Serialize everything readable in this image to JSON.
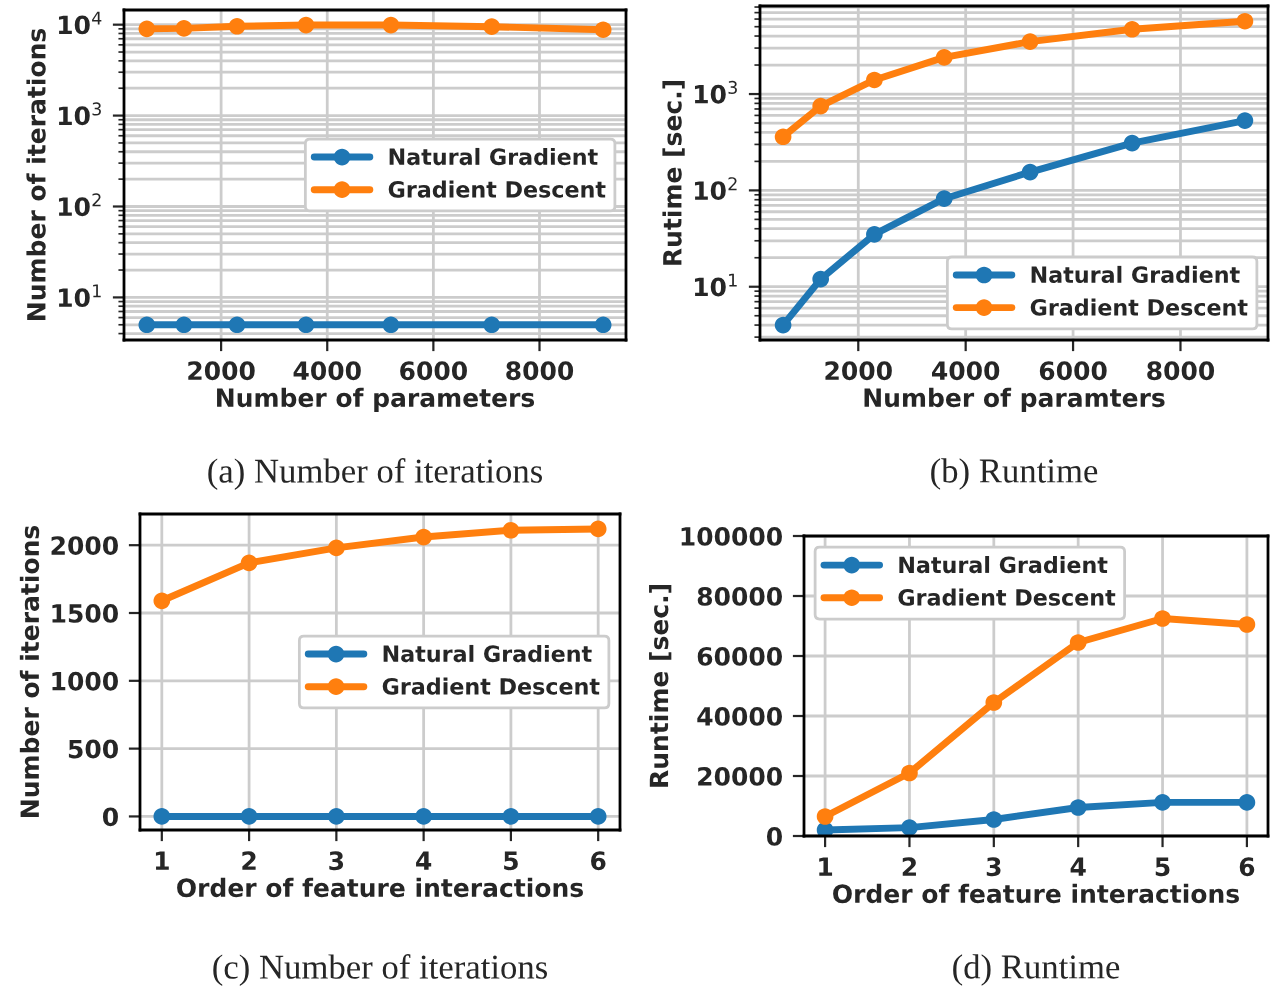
{
  "chart_data": [
    {
      "type": "line",
      "xlabel": "Number of parameters",
      "ylabel": "Number of iterations",
      "annotations": [
        "(a) Number of iterations"
      ],
      "log": "y",
      "grid": true,
      "legend": "right",
      "marker": "circle",
      "line_style": "solid",
      "x": [
        600,
        1300,
        2300,
        3600,
        5200,
        7100,
        9200
      ],
      "series": [
        {
          "name": "Natural Gradient",
          "color": "#1f77b4",
          "values": [
            5,
            5,
            5,
            5,
            5,
            5,
            5
          ]
        },
        {
          "name": "Gradient Descent",
          "color": "#ff7f0e",
          "values": [
            9000,
            9100,
            9600,
            9900,
            9900,
            9500,
            8800
          ]
        }
      ],
      "xlim": [
        170,
        9630
      ],
      "xticks": [
        2000,
        4000,
        6000,
        8000
      ],
      "ylim": [
        3.4,
        14500
      ],
      "yticks": [
        {
          "value": 4,
          "label": null
        },
        {
          "value": 5,
          "label": null
        },
        {
          "value": 6,
          "label": null
        },
        {
          "value": 7,
          "label": null
        },
        {
          "value": 8,
          "label": null
        },
        {
          "value": 9,
          "label": null
        },
        {
          "value": 10,
          "label": "10$^{1}$"
        },
        {
          "value": 20,
          "label": null
        },
        {
          "value": 30,
          "label": null
        },
        {
          "value": 40,
          "label": null
        },
        {
          "value": 50,
          "label": null
        },
        {
          "value": 60,
          "label": null
        },
        {
          "value": 70,
          "label": null
        },
        {
          "value": 80,
          "label": null
        },
        {
          "value": 90,
          "label": null
        },
        {
          "value": 100,
          "label": "10$^{2}$"
        },
        {
          "value": 200,
          "label": null
        },
        {
          "value": 300,
          "label": null
        },
        {
          "value": 400,
          "label": null
        },
        {
          "value": 500,
          "label": null
        },
        {
          "value": 600,
          "label": null
        },
        {
          "value": 700,
          "label": null
        },
        {
          "value": 800,
          "label": null
        },
        {
          "value": 900,
          "label": null
        },
        {
          "value": 1000,
          "label": "10$^{3}$"
        },
        {
          "value": 2000,
          "label": null
        },
        {
          "value": 3000,
          "label": null
        },
        {
          "value": 4000,
          "label": null
        },
        {
          "value": 5000,
          "label": null
        },
        {
          "value": 6000,
          "label": null
        },
        {
          "value": 7000,
          "label": null
        },
        {
          "value": 8000,
          "label": null
        },
        {
          "value": 9000,
          "label": null
        },
        {
          "value": 10000,
          "label": "10$^{4}$"
        }
      ]
    },
    {
      "type": "line",
      "xlabel": "Number of paramters",
      "ylabel": "Rutime [sec.]",
      "annotations": [
        "(b) Runtime"
      ],
      "log": "y",
      "grid": true,
      "legend": "bottom right",
      "marker": "circle",
      "line_style": "solid",
      "x": [
        600,
        1300,
        2300,
        3600,
        5200,
        7100,
        9200
      ],
      "series": [
        {
          "name": "Natural Gradient",
          "color": "#1f77b4",
          "values": [
            4,
            12,
            35,
            82,
            155,
            310,
            530
          ]
        },
        {
          "name": "Gradient Descent",
          "color": "#ff7f0e",
          "values": [
            360,
            750,
            1400,
            2400,
            3500,
            4700,
            5700
          ]
        }
      ],
      "xlim": [
        170,
        9630
      ],
      "xticks": [
        2000,
        4000,
        6000,
        8000
      ],
      "ylim": [
        2.8,
        8200
      ],
      "yticks": [
        {
          "value": 3,
          "label": null
        },
        {
          "value": 4,
          "label": null
        },
        {
          "value": 5,
          "label": null
        },
        {
          "value": 6,
          "label": null
        },
        {
          "value": 7,
          "label": null
        },
        {
          "value": 8,
          "label": null
        },
        {
          "value": 9,
          "label": null
        },
        {
          "value": 10,
          "label": "10$^{1}$"
        },
        {
          "value": 20,
          "label": null
        },
        {
          "value": 30,
          "label": null
        },
        {
          "value": 40,
          "label": null
        },
        {
          "value": 50,
          "label": null
        },
        {
          "value": 60,
          "label": null
        },
        {
          "value": 70,
          "label": null
        },
        {
          "value": 80,
          "label": null
        },
        {
          "value": 90,
          "label": null
        },
        {
          "value": 100,
          "label": "10$^{2}$"
        },
        {
          "value": 200,
          "label": null
        },
        {
          "value": 300,
          "label": null
        },
        {
          "value": 400,
          "label": null
        },
        {
          "value": 500,
          "label": null
        },
        {
          "value": 600,
          "label": null
        },
        {
          "value": 700,
          "label": null
        },
        {
          "value": 800,
          "label": null
        },
        {
          "value": 900,
          "label": null
        },
        {
          "value": 1000,
          "label": "10$^{3}$"
        },
        {
          "value": 2000,
          "label": null
        },
        {
          "value": 3000,
          "label": null
        },
        {
          "value": 4000,
          "label": null
        },
        {
          "value": 5000,
          "label": null
        },
        {
          "value": 6000,
          "label": null
        },
        {
          "value": 7000,
          "label": null
        },
        {
          "value": 8000,
          "label": null
        }
      ]
    },
    {
      "type": "line",
      "xlabel": "Order of feature interactions",
      "ylabel": "Number of iterations",
      "annotations": [
        "(c) Number of iterations"
      ],
      "grid": true,
      "legend": "right",
      "marker": "circle",
      "line_style": "solid",
      "x": [
        1,
        2,
        3,
        4,
        5,
        6
      ],
      "series": [
        {
          "name": "Natural Gradient",
          "color": "#1f77b4",
          "values": [
            0,
            0,
            0,
            0,
            0,
            0
          ]
        },
        {
          "name": "Gradient Descent",
          "color": "#ff7f0e",
          "values": [
            1590,
            1870,
            1980,
            2060,
            2110,
            2120
          ]
        }
      ],
      "xlim": [
        0.75,
        6.25
      ],
      "xticks": [
        1,
        2,
        3,
        4,
        5,
        6
      ],
      "ylim": [
        -100,
        2230
      ],
      "yticks": [
        0,
        500,
        1000,
        1500,
        2000
      ]
    },
    {
      "type": "line",
      "xlabel": "Order of feature interactions",
      "ylabel": "Runtime [sec.]",
      "annotations": [
        "(d) Runtime"
      ],
      "grid": true,
      "legend": "top left",
      "marker": "circle",
      "line_style": "solid",
      "x": [
        1,
        2,
        3,
        4,
        5,
        6
      ],
      "series": [
        {
          "name": "Natural Gradient",
          "color": "#1f77b4",
          "values": [
            2000,
            2800,
            5500,
            9500,
            11200,
            11200
          ]
        },
        {
          "name": "Gradient Descent",
          "color": "#ff7f0e",
          "values": [
            6500,
            21000,
            44500,
            64500,
            72500,
            70500
          ]
        }
      ],
      "xlim": [
        0.75,
        6.25
      ],
      "xticks": [
        1,
        2,
        3,
        4,
        5,
        6
      ],
      "ylim": [
        0,
        100000
      ],
      "yticks": [
        0,
        20000,
        40000,
        60000,
        80000,
        100000
      ]
    }
  ]
}
